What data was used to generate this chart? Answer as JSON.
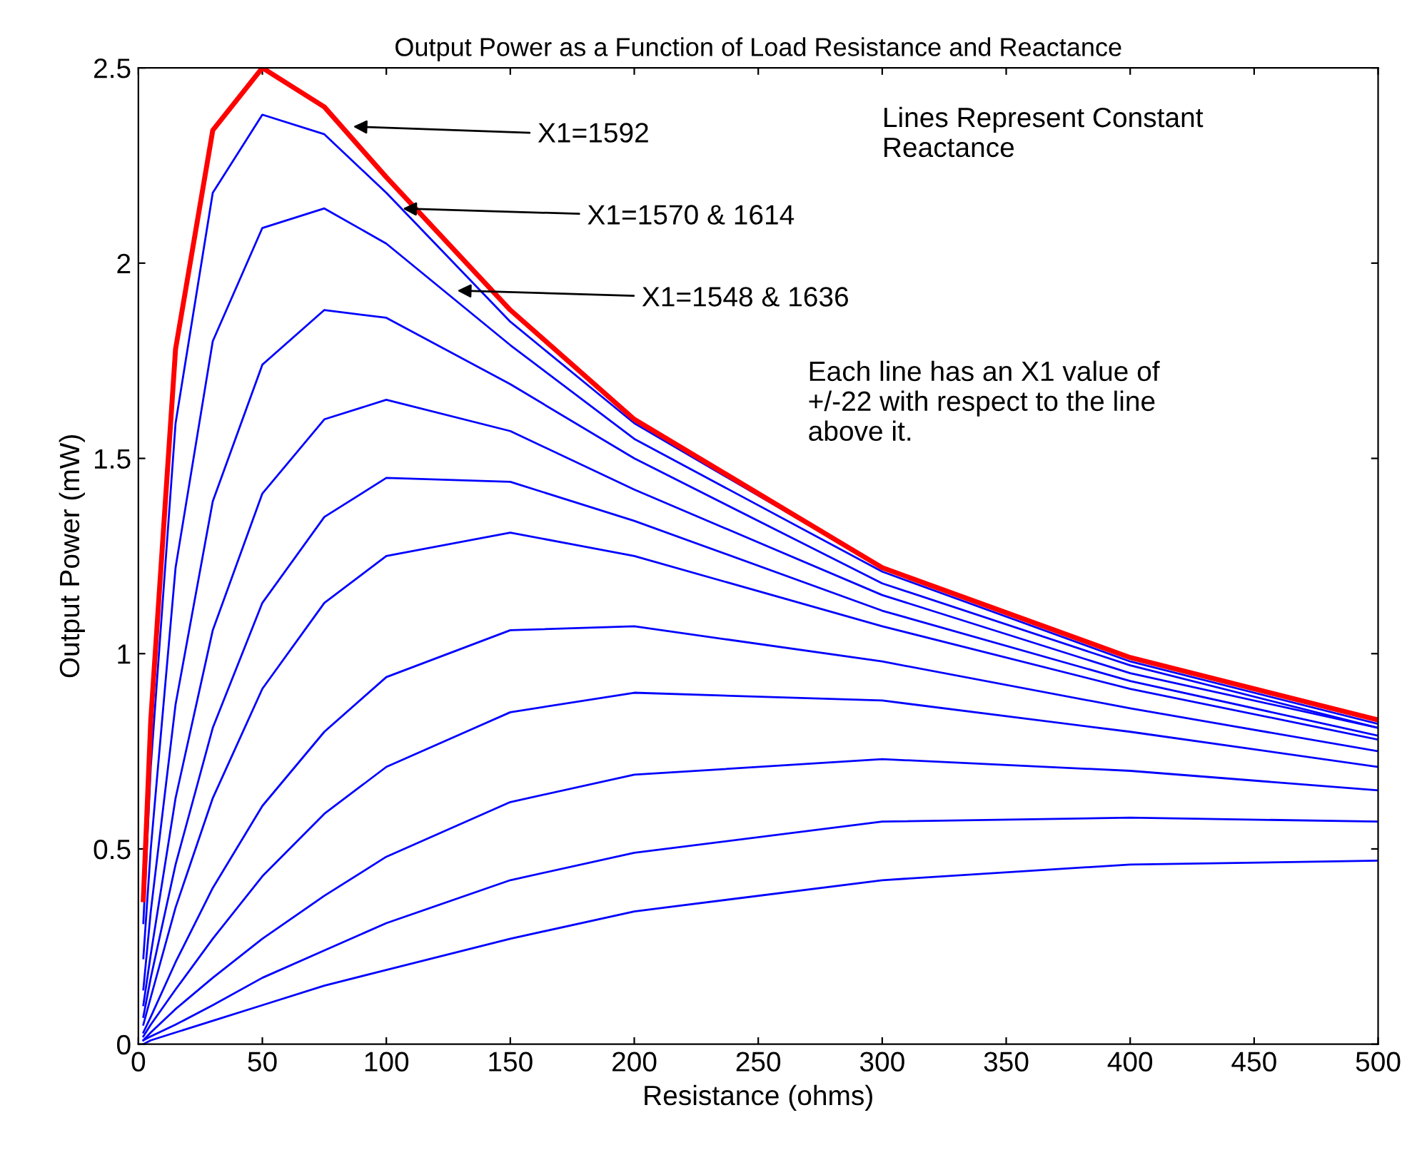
{
  "chart_data": {
    "type": "line",
    "title": "Output Power as a Function of Load Resistance and Reactance",
    "xlabel": "Resistance (ohms)",
    "ylabel": "Output Power (mW)",
    "x": [
      2,
      5,
      15,
      30,
      50,
      75,
      100,
      150,
      200,
      300,
      400,
      500
    ],
    "series": [
      {
        "color": "#0000ff",
        "values": [
          0.0,
          0.01,
          0.03,
          0.06,
          0.1,
          0.15,
          0.19,
          0.27,
          0.34,
          0.42,
          0.46,
          0.47
        ]
      },
      {
        "color": "#0000ff",
        "values": [
          0.01,
          0.02,
          0.05,
          0.1,
          0.17,
          0.24,
          0.31,
          0.42,
          0.49,
          0.57,
          0.58,
          0.57
        ]
      },
      {
        "color": "#0000ff",
        "values": [
          0.01,
          0.03,
          0.09,
          0.17,
          0.27,
          0.38,
          0.48,
          0.62,
          0.69,
          0.73,
          0.7,
          0.65
        ]
      },
      {
        "color": "#0000ff",
        "values": [
          0.02,
          0.05,
          0.14,
          0.27,
          0.43,
          0.59,
          0.71,
          0.85,
          0.9,
          0.88,
          0.8,
          0.71
        ]
      },
      {
        "color": "#0000ff",
        "values": [
          0.03,
          0.07,
          0.21,
          0.4,
          0.61,
          0.8,
          0.94,
          1.06,
          1.07,
          0.98,
          0.86,
          0.75
        ]
      },
      {
        "color": "#0000ff",
        "values": [
          0.05,
          0.12,
          0.35,
          0.63,
          0.91,
          1.13,
          1.25,
          1.31,
          1.25,
          1.07,
          0.91,
          0.78
        ]
      },
      {
        "color": "#0000ff",
        "values": [
          0.07,
          0.17,
          0.46,
          0.81,
          1.13,
          1.35,
          1.45,
          1.44,
          1.34,
          1.11,
          0.93,
          0.79
        ]
      },
      {
        "color": "#0000ff",
        "values": [
          0.1,
          0.23,
          0.63,
          1.06,
          1.41,
          1.6,
          1.65,
          1.57,
          1.42,
          1.15,
          0.95,
          0.81
        ]
      },
      {
        "color": "#0000ff",
        "values": [
          0.14,
          0.34,
          0.87,
          1.39,
          1.74,
          1.88,
          1.86,
          1.69,
          1.5,
          1.18,
          0.97,
          0.81
        ]
      },
      {
        "color": "#0000ff",
        "values": [
          0.22,
          0.5,
          1.22,
          1.8,
          2.09,
          2.14,
          2.05,
          1.79,
          1.55,
          1.21,
          0.98,
          0.82
        ]
      },
      {
        "color": "#0000ff",
        "values": [
          0.31,
          0.71,
          1.59,
          2.18,
          2.38,
          2.33,
          2.18,
          1.85,
          1.59,
          1.22,
          0.99,
          0.83
        ]
      },
      {
        "color": "#ff0000",
        "values": [
          0.37,
          0.83,
          1.78,
          2.34,
          2.5,
          2.4,
          2.22,
          1.88,
          1.6,
          1.22,
          0.99,
          0.83
        ]
      }
    ],
    "xlim": [
      0,
      500
    ],
    "xticks": [
      0,
      50,
      100,
      150,
      200,
      250,
      300,
      350,
      400,
      450,
      500
    ],
    "ylim": [
      0,
      2.5
    ],
    "yticks": [
      0,
      0.5,
      1,
      1.5,
      2,
      2.5
    ],
    "annotations": [
      {
        "text": "X1=1592",
        "x": 85,
        "y": 2.35
      },
      {
        "text": "X1=1570 & 1614",
        "x": 105,
        "y": 2.14
      },
      {
        "text": "X1=1548 & 1636",
        "x": 127,
        "y": 1.93
      },
      "Lines Represent Constant\nReactance",
      "Each line has an X1 value of\n+/-22 with respect to the line\nabove it."
    ],
    "grid": false,
    "marker": "none",
    "line_style": "solid"
  }
}
